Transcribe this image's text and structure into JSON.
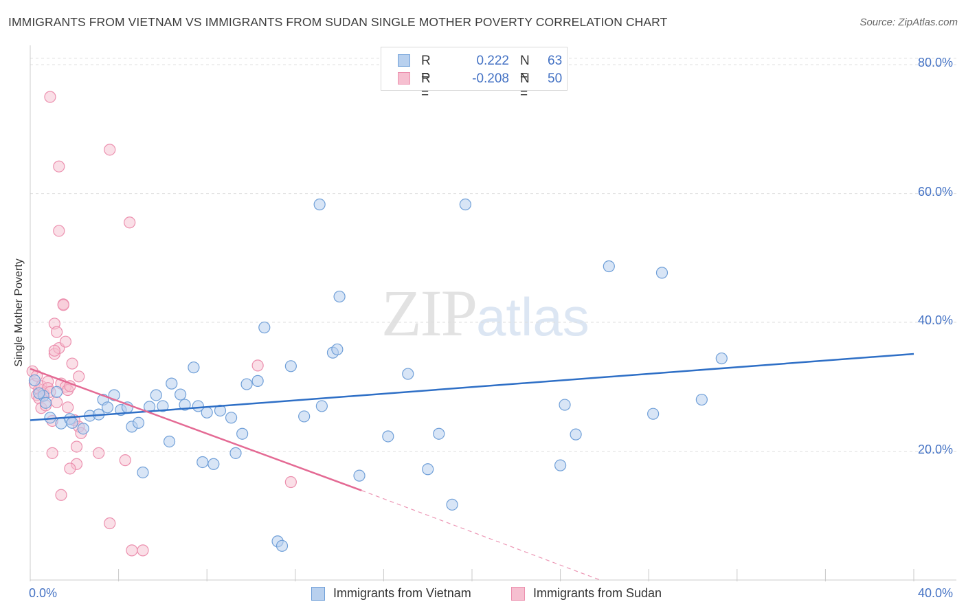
{
  "header": {
    "title": "IMMIGRANTS FROM VIETNAM VS IMMIGRANTS FROM SUDAN SINGLE MOTHER POVERTY CORRELATION CHART",
    "source": "Source: ZipAtlas.com"
  },
  "watermark": {
    "zip": "ZIP",
    "atlas": "atlas"
  },
  "colors": {
    "vietnam_fill": "#b8d0ee",
    "vietnam_stroke": "#6f9fd8",
    "vietnam_line": "#2e6fc6",
    "sudan_fill": "#f6bfd0",
    "sudan_stroke": "#ec8fae",
    "sudan_line": "#e46a94",
    "grid": "#dedede",
    "axis_text": "#4472c4"
  },
  "legend": {
    "rows": [
      {
        "r_label": "R =",
        "r_value": "0.222",
        "n_label": "N =",
        "n_value": "63"
      },
      {
        "r_label": "R =",
        "r_value": "-0.208",
        "n_label": "N =",
        "n_value": "50"
      }
    ]
  },
  "chart_data": {
    "type": "scatter",
    "title": "IMMIGRANTS FROM VIETNAM VS IMMIGRANTS FROM SUDAN SINGLE MOTHER POVERTY CORRELATION CHART",
    "xlabel": "",
    "ylabel": "Single Mother Poverty",
    "xlim": [
      0,
      40
    ],
    "ylim": [
      0,
      83
    ],
    "x_tick_labels": [
      "0.0%",
      "40.0%"
    ],
    "y_ticks": [
      20,
      40,
      60,
      80
    ],
    "y_tick_labels": [
      "20.0%",
      "40.0%",
      "60.0%",
      "80.0%"
    ],
    "grid": true,
    "legend_position": "bottom",
    "series": [
      {
        "name": "Immigrants from Vietnam",
        "r": 0.222,
        "n": 63,
        "trend": {
          "x": [
            0,
            40
          ],
          "y": [
            24.8,
            35.1
          ]
        },
        "points": [
          [
            0.2,
            31.0
          ],
          [
            0.6,
            28.6
          ],
          [
            0.7,
            27.5
          ],
          [
            0.9,
            25.2
          ],
          [
            1.2,
            29.2
          ],
          [
            1.4,
            24.3
          ],
          [
            1.8,
            25.0
          ],
          [
            1.9,
            24.4
          ],
          [
            2.4,
            23.5
          ],
          [
            2.7,
            25.5
          ],
          [
            3.1,
            25.7
          ],
          [
            3.3,
            28.0
          ],
          [
            3.5,
            26.8
          ],
          [
            3.8,
            28.7
          ],
          [
            4.1,
            26.4
          ],
          [
            4.4,
            26.8
          ],
          [
            4.6,
            23.8
          ],
          [
            4.9,
            24.4
          ],
          [
            5.1,
            16.7
          ],
          [
            5.4,
            26.9
          ],
          [
            5.7,
            28.7
          ],
          [
            6.0,
            27.0
          ],
          [
            6.3,
            21.5
          ],
          [
            6.4,
            30.5
          ],
          [
            6.8,
            28.8
          ],
          [
            7.0,
            27.2
          ],
          [
            7.4,
            33.0
          ],
          [
            7.6,
            27.0
          ],
          [
            7.8,
            18.3
          ],
          [
            8.0,
            26.0
          ],
          [
            8.3,
            18.0
          ],
          [
            8.6,
            26.3
          ],
          [
            9.1,
            25.2
          ],
          [
            9.3,
            19.7
          ],
          [
            9.6,
            22.7
          ],
          [
            9.8,
            30.4
          ],
          [
            10.3,
            30.9
          ],
          [
            10.6,
            39.2
          ],
          [
            11.2,
            6.0
          ],
          [
            11.4,
            5.3
          ],
          [
            11.8,
            33.2
          ],
          [
            12.4,
            25.4
          ],
          [
            13.1,
            58.3
          ],
          [
            13.2,
            27.0
          ],
          [
            13.7,
            35.3
          ],
          [
            13.9,
            35.8
          ],
          [
            14.0,
            44.0
          ],
          [
            14.9,
            16.2
          ],
          [
            16.2,
            22.3
          ],
          [
            17.1,
            32.0
          ],
          [
            18.0,
            17.2
          ],
          [
            18.5,
            22.7
          ],
          [
            19.1,
            11.7
          ],
          [
            19.7,
            58.3
          ],
          [
            24.2,
            27.2
          ],
          [
            24.0,
            17.8
          ],
          [
            24.7,
            22.6
          ],
          [
            26.2,
            48.7
          ],
          [
            28.6,
            47.7
          ],
          [
            28.2,
            25.8
          ],
          [
            30.4,
            28.0
          ],
          [
            31.3,
            34.4
          ],
          [
            0.4,
            29.0
          ]
        ]
      },
      {
        "name": "Immigrants from Sudan",
        "r": -0.208,
        "n": 50,
        "trend": {
          "x": [
            0,
            15
          ],
          "y": [
            32.8,
            13.9
          ]
        },
        "trend_dashed": {
          "x": [
            15,
            25.8
          ],
          "y": [
            13.9,
            0.0
          ]
        },
        "points": [
          [
            0.1,
            32.4
          ],
          [
            0.2,
            30.5
          ],
          [
            0.3,
            28.7
          ],
          [
            0.4,
            29.6
          ],
          [
            0.4,
            28.2
          ],
          [
            0.5,
            26.7
          ],
          [
            0.5,
            30.1
          ],
          [
            0.6,
            29.0
          ],
          [
            0.7,
            27.1
          ],
          [
            0.8,
            30.8
          ],
          [
            0.8,
            29.8
          ],
          [
            0.9,
            75.0
          ],
          [
            0.9,
            29.2
          ],
          [
            1.0,
            24.7
          ],
          [
            1.0,
            19.7
          ],
          [
            1.1,
            39.8
          ],
          [
            1.1,
            35.1
          ],
          [
            1.2,
            38.5
          ],
          [
            1.2,
            27.6
          ],
          [
            1.3,
            36.0
          ],
          [
            1.3,
            54.2
          ],
          [
            1.3,
            64.2
          ],
          [
            1.4,
            30.5
          ],
          [
            1.4,
            13.2
          ],
          [
            1.5,
            42.8
          ],
          [
            1.5,
            42.7
          ],
          [
            1.6,
            37.0
          ],
          [
            1.6,
            30.0
          ],
          [
            1.7,
            29.5
          ],
          [
            1.7,
            26.8
          ],
          [
            1.8,
            30.1
          ],
          [
            1.9,
            33.6
          ],
          [
            2.0,
            24.8
          ],
          [
            2.1,
            18.0
          ],
          [
            2.1,
            20.7
          ],
          [
            2.2,
            23.8
          ],
          [
            2.3,
            22.8
          ],
          [
            1.8,
            17.3
          ],
          [
            1.1,
            35.6
          ],
          [
            2.2,
            31.6
          ],
          [
            3.1,
            19.7
          ],
          [
            3.6,
            8.8
          ],
          [
            3.6,
            66.8
          ],
          [
            4.3,
            18.6
          ],
          [
            4.5,
            55.5
          ],
          [
            4.6,
            4.6
          ],
          [
            5.1,
            4.6
          ],
          [
            10.3,
            33.3
          ],
          [
            11.8,
            15.2
          ],
          [
            0.3,
            31.7
          ]
        ]
      }
    ]
  },
  "axes": {
    "x_left_label": "0.0%",
    "x_right_label": "40.0%",
    "y_axis_title": "Single Mother Poverty"
  }
}
